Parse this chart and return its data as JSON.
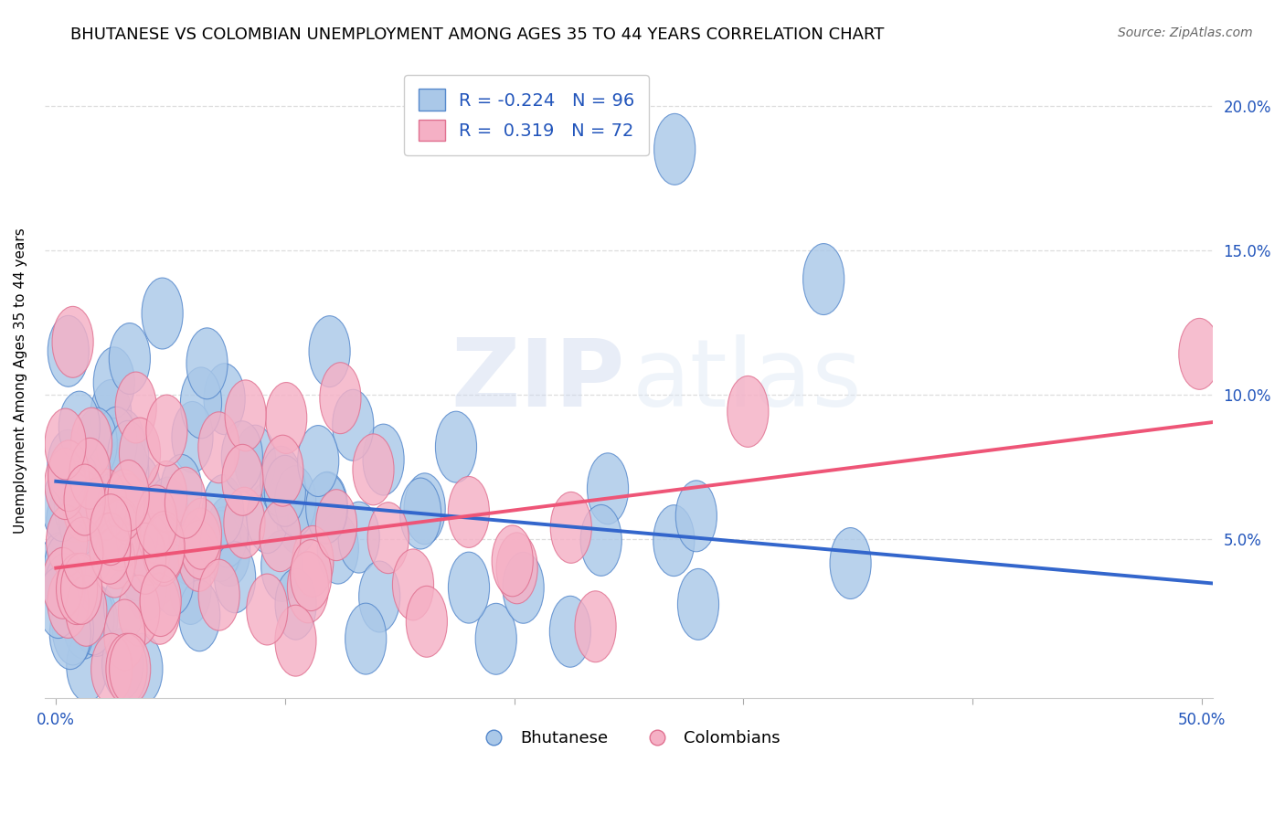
{
  "title": "BHUTANESE VS COLOMBIAN UNEMPLOYMENT AMONG AGES 35 TO 44 YEARS CORRELATION CHART",
  "source": "Source: ZipAtlas.com",
  "ylabel": "Unemployment Among Ages 35 to 44 years",
  "ytick_values": [
    0.05,
    0.1,
    0.15,
    0.2
  ],
  "xlim": [
    -0.005,
    0.505
  ],
  "ylim": [
    -0.005,
    0.215
  ],
  "bhutanese_color": "#aac8e8",
  "colombian_color": "#f5b0c5",
  "bhutanese_edge": "#5588cc",
  "colombian_edge": "#e07090",
  "regression_blue": "#3366cc",
  "regression_pink": "#ee5577",
  "legend_R_color": "#2255bb",
  "R_bhutanese": -0.224,
  "N_bhutanese": 96,
  "R_colombian": 0.319,
  "N_colombian": 72,
  "background_color": "#ffffff",
  "grid_color": "#dddddd",
  "title_fontsize": 13,
  "tick_fontsize": 12,
  "ylabel_fontsize": 11,
  "source_text_color": "#666666",
  "blue_line_y0": 0.07,
  "blue_line_y1": 0.035,
  "pink_line_y0": 0.04,
  "pink_line_y1": 0.09
}
